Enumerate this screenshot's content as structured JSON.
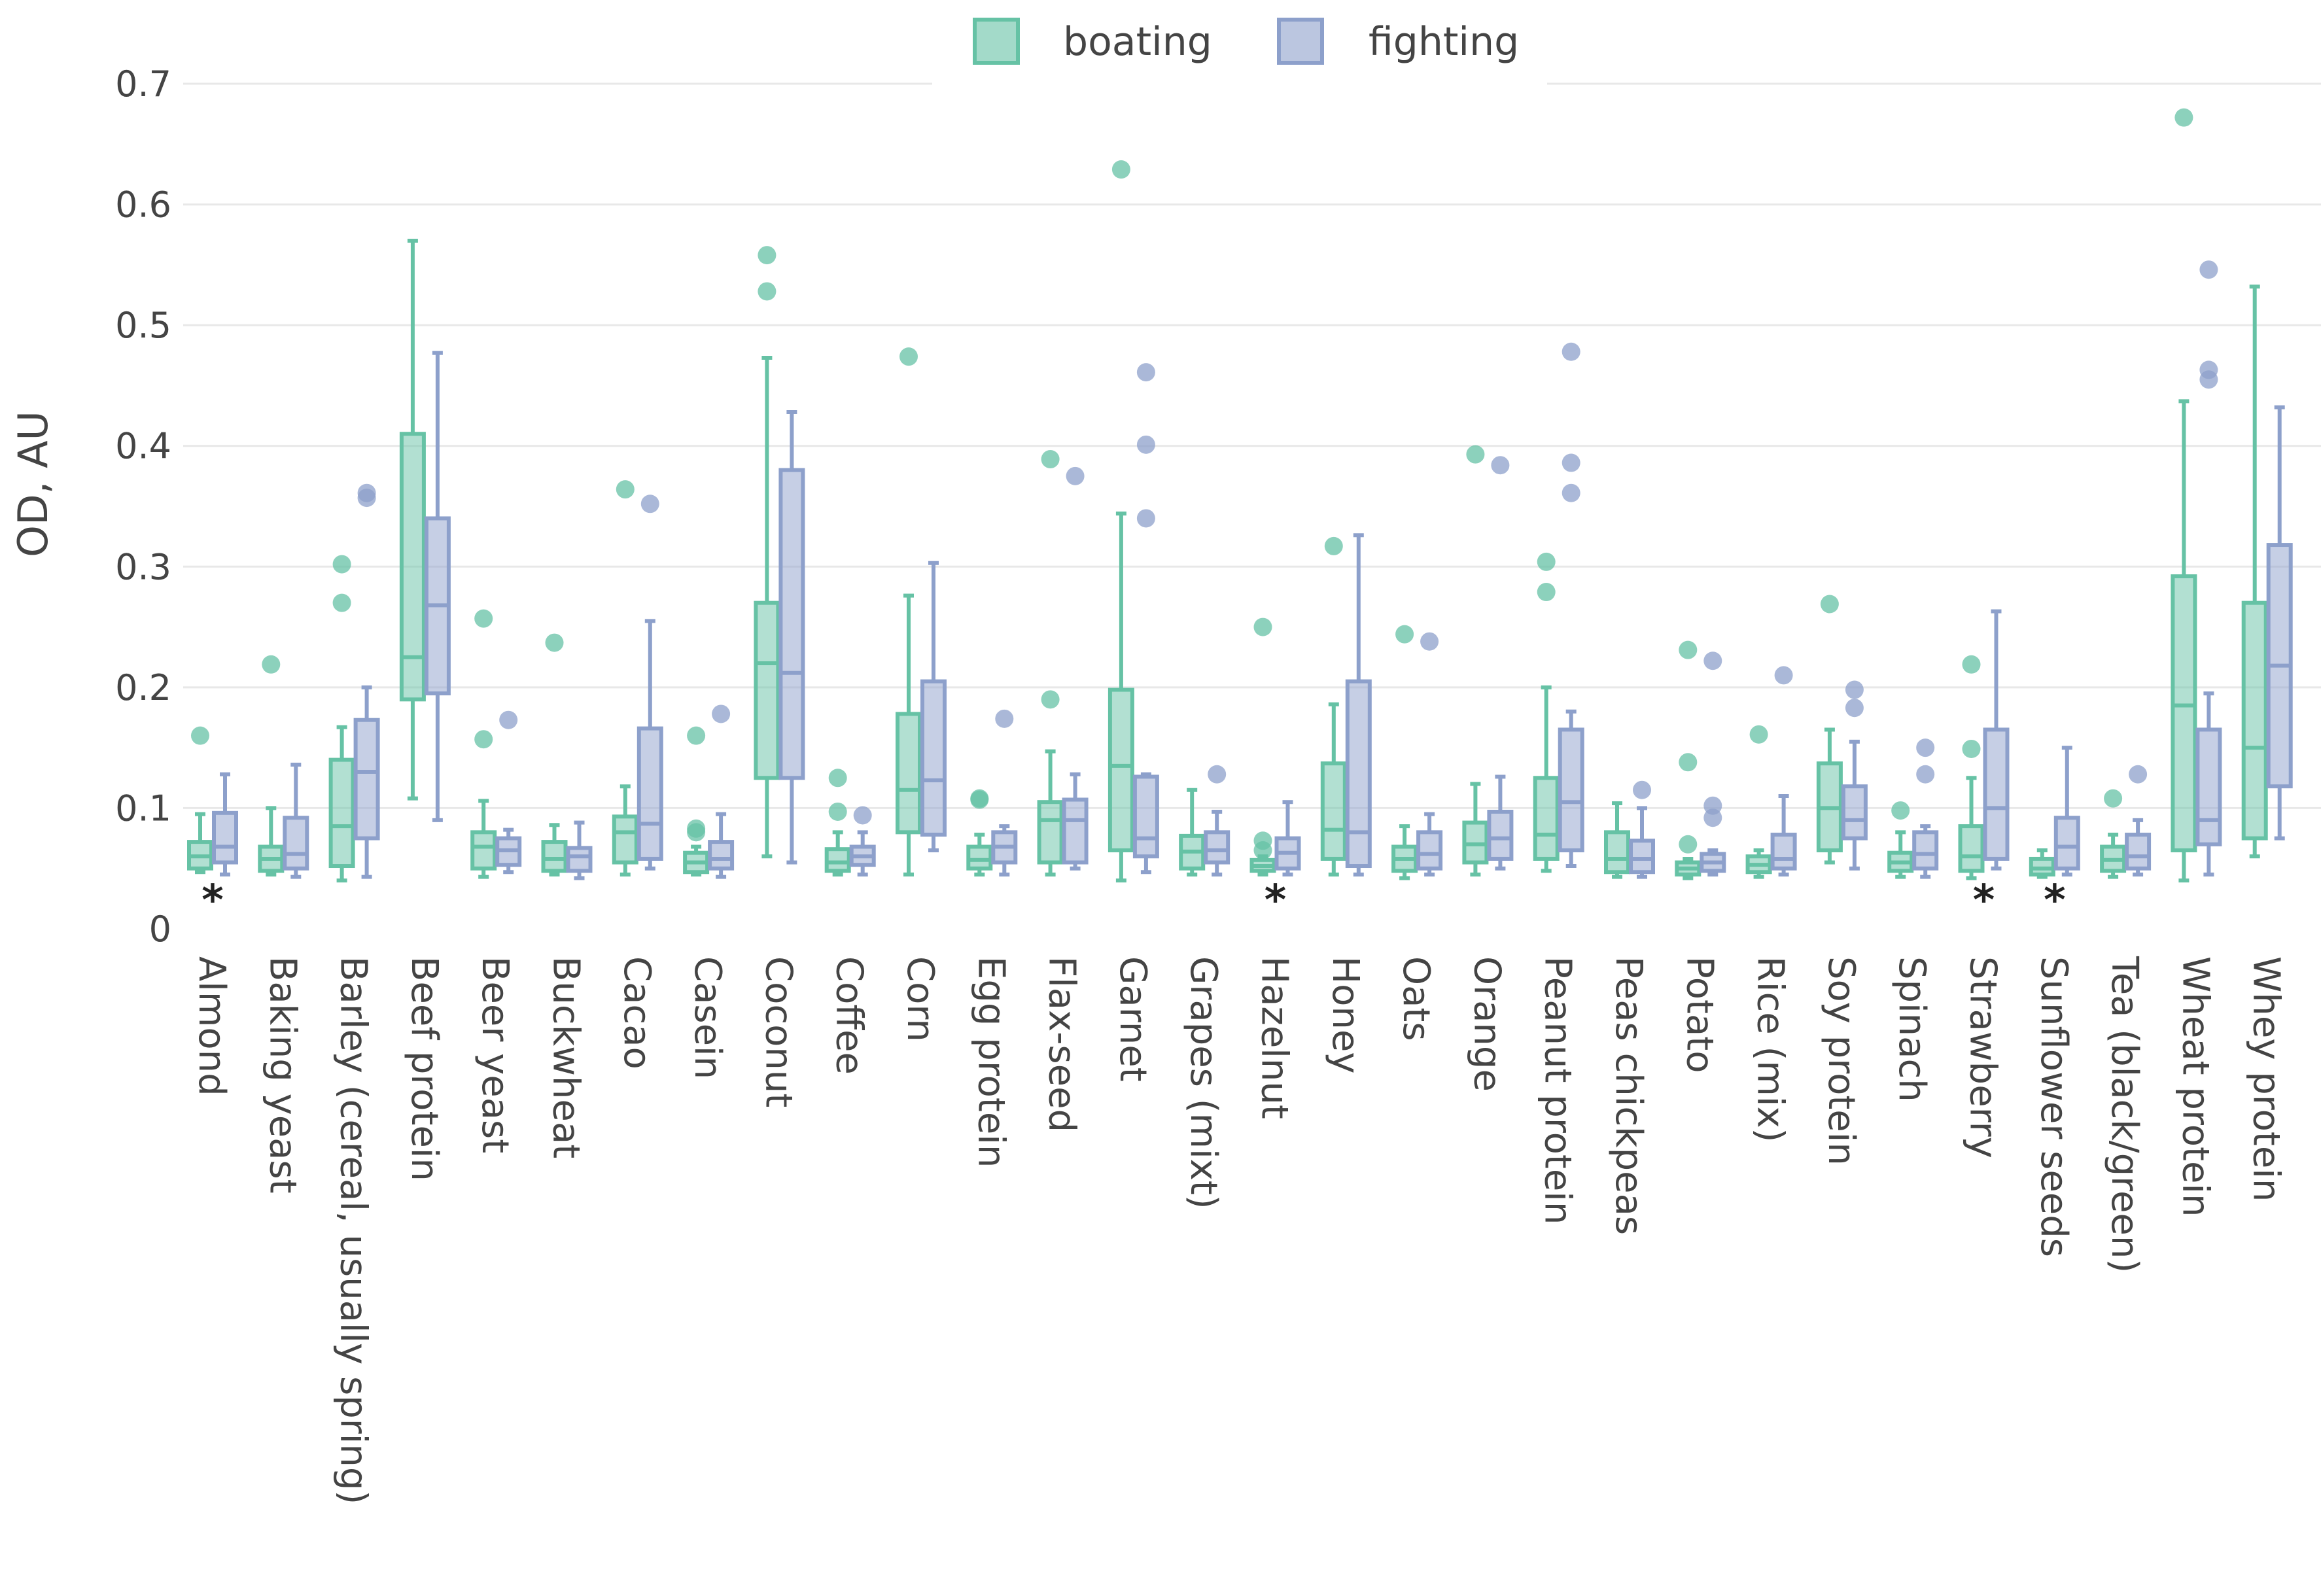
{
  "chart_data": {
    "type": "box",
    "title": "",
    "xlabel": "",
    "ylabel": "OD, AU",
    "ylim": [
      0,
      0.7
    ],
    "yticks": [
      "0",
      "0.1",
      "0.2",
      "0.3",
      "0.4",
      "0.5",
      "0.6",
      "0.7"
    ],
    "grid": true,
    "legend_position": "top-center",
    "series": [
      {
        "name": "boating",
        "color": "#66c2a5"
      },
      {
        "name": "fighting",
        "color": "#8da0cb"
      }
    ],
    "categories": [
      "Almond",
      "Baking yeast",
      "Barley (cereal, usually spring)",
      "Beef protein",
      "Beer yeast",
      "Buckwheat",
      "Cacao",
      "Casein",
      "Coconut",
      "Coffee",
      "Corn",
      "Egg protein",
      "Flax-seed",
      "Garnet",
      "Grapes (mixt)",
      "Hazelnut",
      "Honey",
      "Oats",
      "Orange",
      "Peanut protein",
      "Peas chickpeas",
      "Potato",
      "Rice (mix)",
      "Soy protein",
      "Spinach",
      "Strawberry",
      "Sunflower seeds",
      "Tea (black/green)",
      "Wheat protein",
      "Whey protein"
    ],
    "annotations": [
      {
        "category": "Almond",
        "text": "*"
      },
      {
        "category": "Hazelnut",
        "text": "*"
      },
      {
        "category": "Strawberry",
        "text": "*"
      },
      {
        "category": "Sunflower seeds",
        "text": "*"
      }
    ],
    "boxes": {
      "boating": [
        {
          "min": 0.047,
          "q1": 0.05,
          "median": 0.06,
          "q3": 0.072,
          "max": 0.095,
          "outliers": [
            0.16
          ]
        },
        {
          "min": 0.045,
          "q1": 0.048,
          "median": 0.058,
          "q3": 0.068,
          "max": 0.1,
          "outliers": [
            0.219
          ]
        },
        {
          "min": 0.04,
          "q1": 0.052,
          "median": 0.085,
          "q3": 0.14,
          "max": 0.167,
          "outliers": [
            0.27,
            0.302
          ]
        },
        {
          "min": 0.108,
          "q1": 0.19,
          "median": 0.225,
          "q3": 0.41,
          "max": 0.57,
          "outliers": []
        },
        {
          "min": 0.043,
          "q1": 0.05,
          "median": 0.068,
          "q3": 0.08,
          "max": 0.106,
          "outliers": [
            0.157,
            0.257
          ]
        },
        {
          "min": 0.045,
          "q1": 0.048,
          "median": 0.058,
          "q3": 0.072,
          "max": 0.086,
          "outliers": [
            0.237
          ]
        },
        {
          "min": 0.045,
          "q1": 0.055,
          "median": 0.08,
          "q3": 0.093,
          "max": 0.118,
          "outliers": [
            0.364
          ]
        },
        {
          "min": 0.045,
          "q1": 0.047,
          "median": 0.055,
          "q3": 0.063,
          "max": 0.068,
          "outliers": [
            0.08,
            0.083,
            0.16
          ]
        },
        {
          "min": 0.06,
          "q1": 0.125,
          "median": 0.22,
          "q3": 0.27,
          "max": 0.473,
          "outliers": [
            0.528,
            0.558
          ]
        },
        {
          "min": 0.045,
          "q1": 0.048,
          "median": 0.055,
          "q3": 0.066,
          "max": 0.08,
          "outliers": [
            0.097,
            0.125
          ]
        },
        {
          "min": 0.045,
          "q1": 0.08,
          "median": 0.115,
          "q3": 0.178,
          "max": 0.276,
          "outliers": [
            0.474
          ]
        },
        {
          "min": 0.045,
          "q1": 0.05,
          "median": 0.057,
          "q3": 0.068,
          "max": 0.078,
          "outliers": [
            0.107,
            0.108
          ]
        },
        {
          "min": 0.045,
          "q1": 0.055,
          "median": 0.09,
          "q3": 0.105,
          "max": 0.147,
          "outliers": [
            0.19,
            0.389
          ]
        },
        {
          "min": 0.04,
          "q1": 0.065,
          "median": 0.135,
          "q3": 0.198,
          "max": 0.344,
          "outliers": [
            0.629
          ]
        },
        {
          "min": 0.045,
          "q1": 0.05,
          "median": 0.064,
          "q3": 0.077,
          "max": 0.115,
          "outliers": []
        },
        {
          "min": 0.045,
          "q1": 0.048,
          "median": 0.052,
          "q3": 0.057,
          "max": 0.06,
          "outliers": [
            0.065,
            0.073,
            0.25
          ]
        },
        {
          "min": 0.045,
          "q1": 0.058,
          "median": 0.082,
          "q3": 0.137,
          "max": 0.186,
          "outliers": [
            0.317
          ]
        },
        {
          "min": 0.042,
          "q1": 0.048,
          "median": 0.058,
          "q3": 0.068,
          "max": 0.085,
          "outliers": [
            0.244
          ]
        },
        {
          "min": 0.045,
          "q1": 0.055,
          "median": 0.07,
          "q3": 0.088,
          "max": 0.12,
          "outliers": [
            0.393
          ]
        },
        {
          "min": 0.048,
          "q1": 0.058,
          "median": 0.078,
          "q3": 0.125,
          "max": 0.2,
          "outliers": [
            0.279,
            0.304
          ]
        },
        {
          "min": 0.043,
          "q1": 0.047,
          "median": 0.058,
          "q3": 0.08,
          "max": 0.104,
          "outliers": []
        },
        {
          "min": 0.042,
          "q1": 0.045,
          "median": 0.05,
          "q3": 0.055,
          "max": 0.058,
          "outliers": [
            0.07,
            0.138,
            0.231
          ]
        },
        {
          "min": 0.043,
          "q1": 0.047,
          "median": 0.053,
          "q3": 0.06,
          "max": 0.065,
          "outliers": [
            0.161
          ]
        },
        {
          "min": 0.055,
          "q1": 0.065,
          "median": 0.1,
          "q3": 0.137,
          "max": 0.165,
          "outliers": [
            0.269
          ]
        },
        {
          "min": 0.043,
          "q1": 0.048,
          "median": 0.055,
          "q3": 0.063,
          "max": 0.08,
          "outliers": [
            0.098
          ]
        },
        {
          "min": 0.042,
          "q1": 0.048,
          "median": 0.06,
          "q3": 0.085,
          "max": 0.125,
          "outliers": [
            0.149,
            0.219
          ]
        },
        {
          "min": 0.043,
          "q1": 0.045,
          "median": 0.05,
          "q3": 0.058,
          "max": 0.065,
          "outliers": []
        },
        {
          "min": 0.043,
          "q1": 0.048,
          "median": 0.057,
          "q3": 0.068,
          "max": 0.078,
          "outliers": [
            0.108
          ]
        },
        {
          "min": 0.04,
          "q1": 0.065,
          "median": 0.185,
          "q3": 0.292,
          "max": 0.437,
          "outliers": [
            0.672
          ]
        },
        {
          "min": 0.06,
          "q1": 0.075,
          "median": 0.15,
          "q3": 0.27,
          "max": 0.532,
          "outliers": []
        }
      ],
      "fighting": [
        {
          "min": 0.045,
          "q1": 0.055,
          "median": 0.068,
          "q3": 0.096,
          "max": 0.128,
          "outliers": []
        },
        {
          "min": 0.043,
          "q1": 0.05,
          "median": 0.062,
          "q3": 0.092,
          "max": 0.136,
          "outliers": []
        },
        {
          "min": 0.043,
          "q1": 0.075,
          "median": 0.13,
          "q3": 0.173,
          "max": 0.2,
          "outliers": [
            0.357,
            0.361
          ]
        },
        {
          "min": 0.09,
          "q1": 0.195,
          "median": 0.268,
          "q3": 0.34,
          "max": 0.477,
          "outliers": []
        },
        {
          "min": 0.047,
          "q1": 0.053,
          "median": 0.065,
          "q3": 0.075,
          "max": 0.082,
          "outliers": [
            0.173
          ]
        },
        {
          "min": 0.042,
          "q1": 0.048,
          "median": 0.06,
          "q3": 0.067,
          "max": 0.088,
          "outliers": []
        },
        {
          "min": 0.05,
          "q1": 0.058,
          "median": 0.087,
          "q3": 0.166,
          "max": 0.255,
          "outliers": [
            0.352
          ]
        },
        {
          "min": 0.043,
          "q1": 0.05,
          "median": 0.058,
          "q3": 0.072,
          "max": 0.095,
          "outliers": [
            0.178
          ]
        },
        {
          "min": 0.055,
          "q1": 0.125,
          "median": 0.212,
          "q3": 0.38,
          "max": 0.428,
          "outliers": []
        },
        {
          "min": 0.045,
          "q1": 0.053,
          "median": 0.06,
          "q3": 0.068,
          "max": 0.08,
          "outliers": [
            0.094
          ]
        },
        {
          "min": 0.065,
          "q1": 0.078,
          "median": 0.123,
          "q3": 0.205,
          "max": 0.303,
          "outliers": []
        },
        {
          "min": 0.045,
          "q1": 0.055,
          "median": 0.068,
          "q3": 0.08,
          "max": 0.085,
          "outliers": [
            0.174
          ]
        },
        {
          "min": 0.05,
          "q1": 0.055,
          "median": 0.09,
          "q3": 0.107,
          "max": 0.128,
          "outliers": [
            0.375
          ]
        },
        {
          "min": 0.047,
          "q1": 0.06,
          "median": 0.075,
          "q3": 0.126,
          "max": 0.128,
          "outliers": [
            0.34,
            0.401,
            0.461
          ]
        },
        {
          "min": 0.045,
          "q1": 0.055,
          "median": 0.065,
          "q3": 0.08,
          "max": 0.097,
          "outliers": [
            0.128
          ]
        },
        {
          "min": 0.045,
          "q1": 0.05,
          "median": 0.063,
          "q3": 0.075,
          "max": 0.105,
          "outliers": []
        },
        {
          "min": 0.045,
          "q1": 0.052,
          "median": 0.08,
          "q3": 0.205,
          "max": 0.326,
          "outliers": []
        },
        {
          "min": 0.045,
          "q1": 0.05,
          "median": 0.062,
          "q3": 0.08,
          "max": 0.095,
          "outliers": [
            0.238
          ]
        },
        {
          "min": 0.05,
          "q1": 0.058,
          "median": 0.075,
          "q3": 0.097,
          "max": 0.126,
          "outliers": [
            0.384
          ]
        },
        {
          "min": 0.052,
          "q1": 0.065,
          "median": 0.105,
          "q3": 0.165,
          "max": 0.18,
          "outliers": [
            0.361,
            0.386,
            0.478
          ]
        },
        {
          "min": 0.043,
          "q1": 0.047,
          "median": 0.058,
          "q3": 0.073,
          "max": 0.1,
          "outliers": [
            0.115
          ]
        },
        {
          "min": 0.045,
          "q1": 0.048,
          "median": 0.055,
          "q3": 0.062,
          "max": 0.065,
          "outliers": [
            0.092,
            0.102,
            0.222
          ]
        },
        {
          "min": 0.045,
          "q1": 0.05,
          "median": 0.058,
          "q3": 0.078,
          "max": 0.11,
          "outliers": [
            0.21
          ]
        },
        {
          "min": 0.05,
          "q1": 0.075,
          "median": 0.09,
          "q3": 0.118,
          "max": 0.155,
          "outliers": [
            0.183,
            0.198
          ]
        },
        {
          "min": 0.043,
          "q1": 0.05,
          "median": 0.062,
          "q3": 0.08,
          "max": 0.085,
          "outliers": [
            0.128,
            0.15
          ]
        },
        {
          "min": 0.05,
          "q1": 0.058,
          "median": 0.1,
          "q3": 0.165,
          "max": 0.263,
          "outliers": []
        },
        {
          "min": 0.045,
          "q1": 0.05,
          "median": 0.068,
          "q3": 0.092,
          "max": 0.15,
          "outliers": []
        },
        {
          "min": 0.045,
          "q1": 0.05,
          "median": 0.06,
          "q3": 0.078,
          "max": 0.09,
          "outliers": [
            0.128
          ]
        },
        {
          "min": 0.045,
          "q1": 0.07,
          "median": 0.09,
          "q3": 0.165,
          "max": 0.195,
          "outliers": [
            0.455,
            0.463,
            0.546
          ]
        },
        {
          "min": 0.075,
          "q1": 0.118,
          "median": 0.218,
          "q3": 0.318,
          "max": 0.432,
          "outliers": []
        }
      ]
    }
  }
}
